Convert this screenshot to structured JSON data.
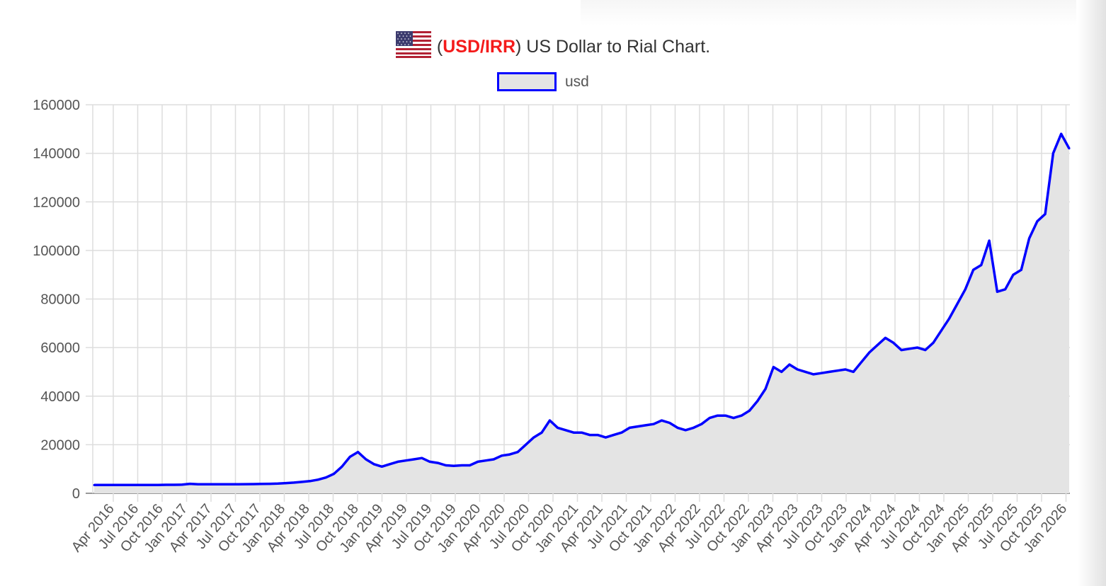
{
  "title": {
    "prefix": "(",
    "code": "USD/IRR",
    "suffix": ") US Dollar to Rial Chart.",
    "flag_icon": "us-flag-icon"
  },
  "legend": {
    "label": "usd"
  },
  "colors": {
    "line": "#0000ff",
    "fill": "#e4e4e4",
    "code": "#f41b1b"
  },
  "chart_data": {
    "type": "area",
    "title": "(USD/IRR) US Dollar to Rial Chart.",
    "xlabel": "",
    "ylabel": "",
    "ylim": [
      0,
      160000
    ],
    "yticks": [
      0,
      20000,
      40000,
      60000,
      80000,
      100000,
      120000,
      140000,
      160000
    ],
    "grid": true,
    "legend_position": "top-center",
    "x_start": "2016-01",
    "xtick_labels": [
      "Apr 2016",
      "Jul 2016",
      "Oct 2016",
      "Jan 2017",
      "Apr 2017",
      "Jul 2017",
      "Oct 2017",
      "Jan 2018",
      "Apr 2018",
      "Jul 2018",
      "Oct 2018",
      "Jan 2019",
      "Apr 2019",
      "Jul 2019",
      "Oct 2019",
      "Jan 2020",
      "Apr 2020",
      "Jul 2020",
      "Oct 2020",
      "Jan 2021",
      "Apr 2021",
      "Jul 2021",
      "Oct 2021",
      "Jan 2022",
      "Apr 2022",
      "Jul 2022",
      "Oct 2022",
      "Jan 2023",
      "Apr 2023",
      "Jul 2023",
      "Oct 2023",
      "Jan 2024",
      "Apr 2024",
      "Jul 2024",
      "Oct 2024",
      "Jan 2025",
      "Apr 2025",
      "Jul 2025",
      "Oct 2025",
      "Jan 2026"
    ],
    "series": [
      {
        "name": "usd",
        "monthly_values": [
          3400,
          3400,
          3400,
          3400,
          3400,
          3400,
          3400,
          3450,
          3450,
          3500,
          3500,
          3550,
          3900,
          3700,
          3700,
          3700,
          3700,
          3700,
          3700,
          3750,
          3800,
          3850,
          3900,
          4000,
          4200,
          4400,
          4700,
          5000,
          5600,
          6500,
          8000,
          11000,
          15000,
          17000,
          14000,
          12000,
          11000,
          12000,
          13000,
          13500,
          14000,
          14500,
          13000,
          12500,
          11500,
          11300,
          11500,
          11500,
          13000,
          13500,
          14000,
          15500,
          16000,
          17000,
          20000,
          23000,
          25000,
          30000,
          27000,
          26000,
          25000,
          25000,
          24000,
          24000,
          23000,
          24000,
          25000,
          27000,
          27500,
          28000,
          28500,
          30000,
          29000,
          27000,
          26000,
          27000,
          28500,
          31000,
          32000,
          32000,
          31000,
          32000,
          34000,
          38000,
          43000,
          52000,
          50000,
          53000,
          51000,
          50000,
          49000,
          49500,
          50000,
          50500,
          51000,
          50000,
          54000,
          58000,
          61000,
          64000,
          62000,
          59000,
          59500,
          60000,
          59000,
          62000,
          67000,
          72000,
          78000,
          84000,
          92000,
          94000,
          104000,
          83000,
          84000,
          90000,
          92000,
          105000,
          112000,
          115000,
          140000,
          148000,
          142000
        ]
      }
    ]
  }
}
